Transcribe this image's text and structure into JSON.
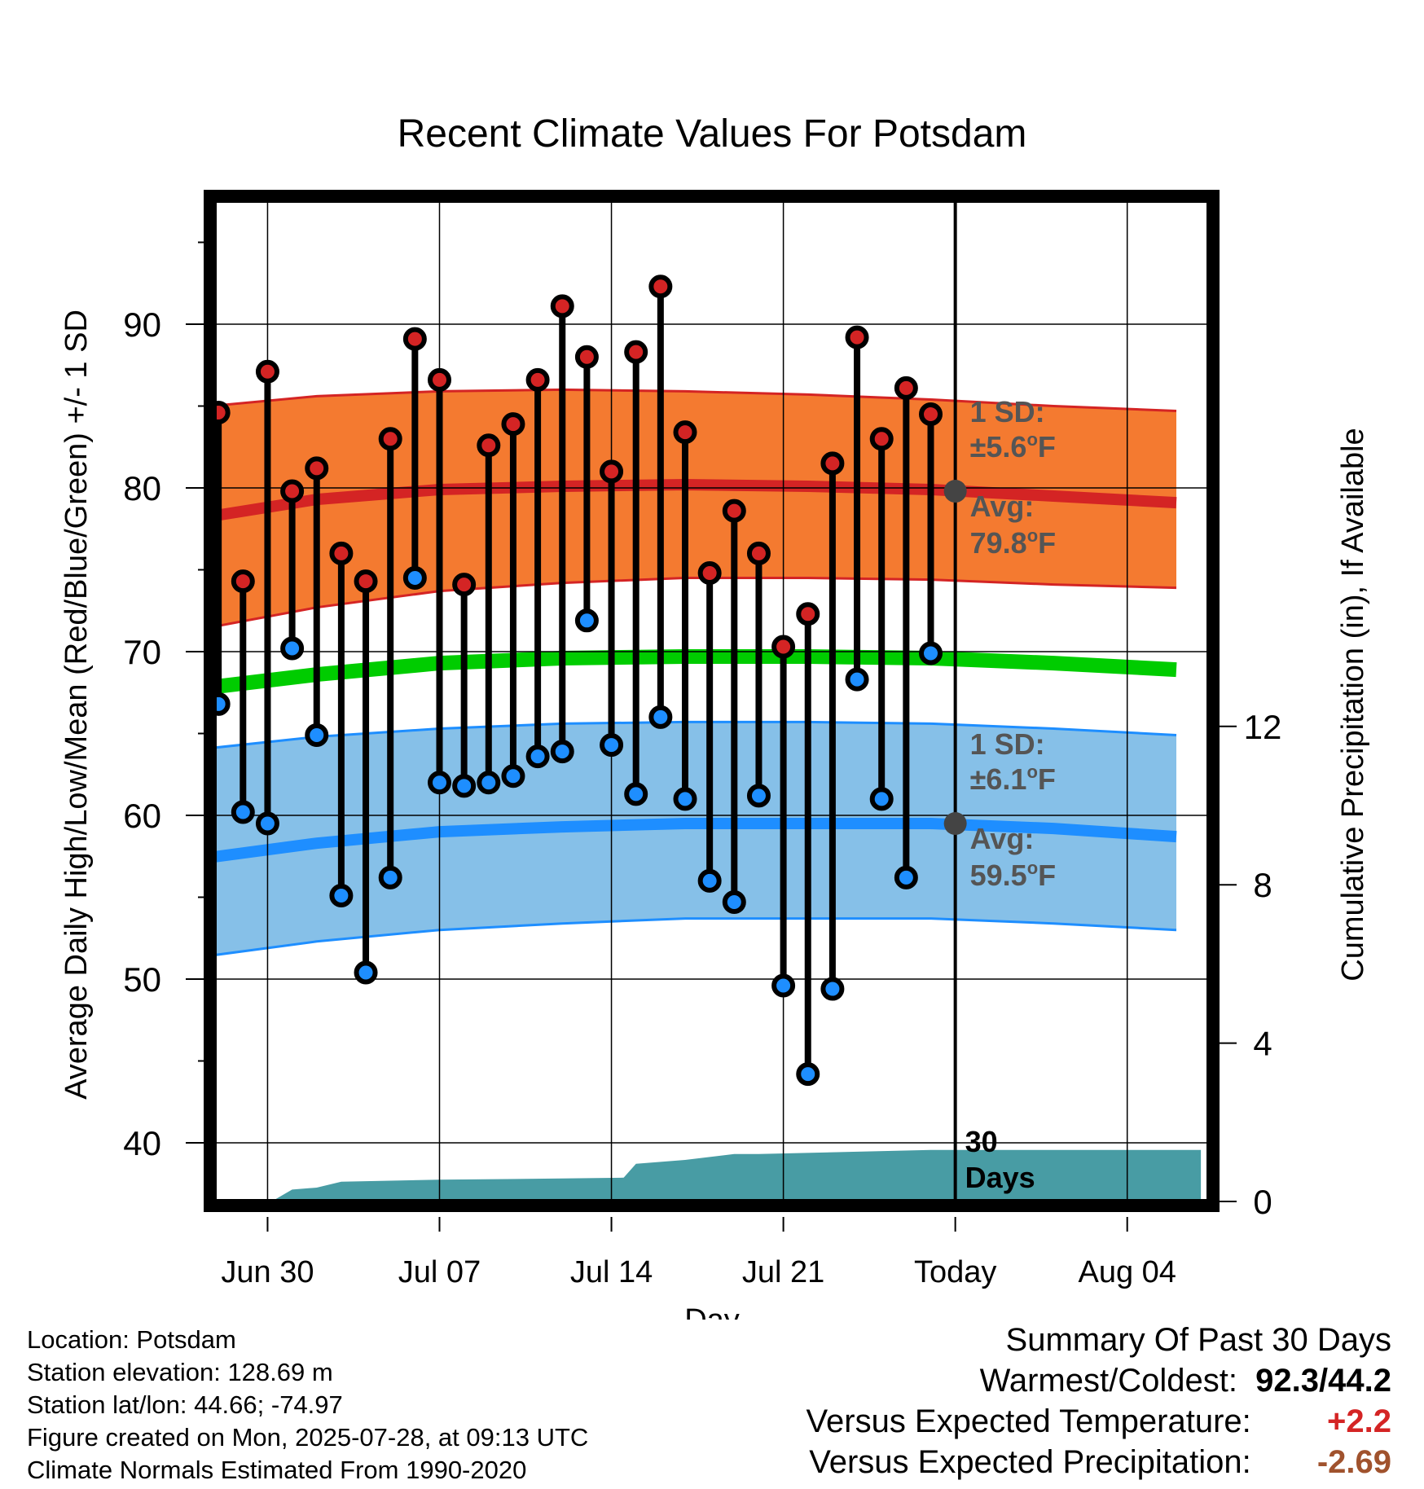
{
  "chart_data": {
    "type": "line",
    "title": "Recent Climate Values For Potsdam",
    "xlabel": "Day",
    "ylabel": "Average Daily High/Low/Mean (Red/Blue/Green) +/- 1 SD",
    "y2label": "Cumulative Precipitation (in), If Available",
    "x_tick_labels": [
      "Jun 30",
      "Jul 07",
      "Jul 14",
      "Jul 21",
      "Today",
      "Aug 04"
    ],
    "x_tick_days": [
      3,
      10,
      17,
      24,
      31,
      38
    ],
    "y_ticks": [
      40,
      50,
      60,
      70,
      80,
      90
    ],
    "y_range": [
      36.5,
      98
    ],
    "y2_ticks": [
      0,
      4,
      8,
      12
    ],
    "today_day": 31,
    "day_range": [
      0,
      41
    ],
    "observed_days": [
      1,
      2,
      3,
      4,
      5,
      6,
      7,
      8,
      9,
      10,
      11,
      12,
      13,
      14,
      15,
      16,
      17,
      18,
      19,
      20,
      21,
      22,
      23,
      24,
      25,
      26,
      27,
      28,
      29,
      30
    ],
    "observed_high": [
      84.6,
      74.3,
      87.1,
      79.8,
      81.2,
      76.0,
      74.3,
      83.0,
      89.1,
      86.6,
      74.1,
      82.6,
      83.9,
      86.6,
      91.1,
      88.0,
      81.0,
      88.3,
      92.3,
      83.4,
      74.8,
      78.6,
      76.0,
      70.3,
      72.3,
      81.5,
      89.2,
      83.0,
      86.1,
      84.5
    ],
    "observed_low": [
      66.8,
      60.2,
      59.5,
      70.2,
      64.9,
      55.1,
      50.4,
      56.2,
      74.5,
      62.0,
      61.8,
      62.0,
      62.4,
      63.6,
      63.9,
      71.9,
      64.3,
      61.3,
      66.0,
      61.0,
      56.0,
      54.7,
      61.2,
      49.6,
      44.2,
      49.4,
      68.3,
      61.0,
      56.2,
      69.9
    ],
    "normal_days": [
      0,
      5,
      10,
      15,
      20,
      25,
      30,
      35,
      40
    ],
    "normal_high_avg": [
      78.1,
      79.3,
      79.9,
      80.1,
      80.2,
      80.1,
      79.9,
      79.5,
      79.1
    ],
    "normal_high_upper": [
      84.9,
      85.6,
      85.9,
      86.0,
      85.9,
      85.7,
      85.4,
      85.0,
      84.7
    ],
    "normal_high_lower": [
      71.3,
      72.7,
      73.7,
      74.2,
      74.5,
      74.5,
      74.4,
      74.1,
      73.9
    ],
    "normal_mean": [
      67.7,
      68.6,
      69.3,
      69.6,
      69.7,
      69.7,
      69.6,
      69.3,
      68.9
    ],
    "normal_low_avg": [
      57.3,
      58.3,
      59.0,
      59.3,
      59.5,
      59.5,
      59.5,
      59.2,
      58.7
    ],
    "normal_low_upper": [
      64.0,
      64.8,
      65.3,
      65.6,
      65.7,
      65.7,
      65.6,
      65.3,
      64.9
    ],
    "normal_low_lower": [
      51.3,
      52.3,
      53.0,
      53.4,
      53.7,
      53.7,
      53.7,
      53.4,
      53.0
    ],
    "precip_days": [
      0,
      3,
      3.3,
      4,
      5,
      6,
      10,
      15,
      17.5,
      18,
      19,
      20,
      22,
      23,
      30,
      41
    ],
    "precip_cum": [
      0,
      0,
      0.05,
      0.3,
      0.35,
      0.5,
      0.55,
      0.58,
      0.6,
      0.95,
      1.0,
      1.05,
      1.2,
      1.2,
      1.3,
      1.3
    ],
    "annotations": {
      "high_sd_label": "1 SD:",
      "high_sd_value": "±5.6",
      "high_avg_label": "Avg:",
      "high_avg_value": "79.8",
      "low_sd_label": "1 SD:",
      "low_sd_value": "±6.1",
      "low_avg_label": "Avg:",
      "low_avg_value": "59.5",
      "unit_sup": "o",
      "unit_letter": "F",
      "days_count": "30",
      "days_word": "Days"
    },
    "colors": {
      "high_band": "#f47a30",
      "high_line": "#d42424",
      "low_band": "#86c0e8",
      "low_line": "#1e8eff",
      "mean_line": "#00cc00",
      "precip": "#489ca4",
      "high_dot": "#d42424",
      "low_dot": "#1e8eff",
      "annotation": "#555555",
      "marker": "#444444"
    }
  },
  "info": {
    "location": "Location: Potsdam",
    "elevation": "Station elevation: 128.69 m",
    "latlon": "Station lat/lon: 44.66; -74.97",
    "created": "Figure created on Mon, 2025-07-28, at 09:13 UTC",
    "normals": "Climate Normals Estimated From 1990-2020"
  },
  "summary": {
    "title": "Summary Of Past 30 Days",
    "warm_cold_label": "Warmest/Coldest:",
    "warm_cold_value": "92.3/44.2",
    "temp_label": "Versus Expected Temperature:",
    "temp_value": "+2.2",
    "temp_color": "#d42424",
    "precip_label": "Versus Expected Precipitation:",
    "precip_value": "-2.69",
    "precip_color": "#a0522d"
  }
}
